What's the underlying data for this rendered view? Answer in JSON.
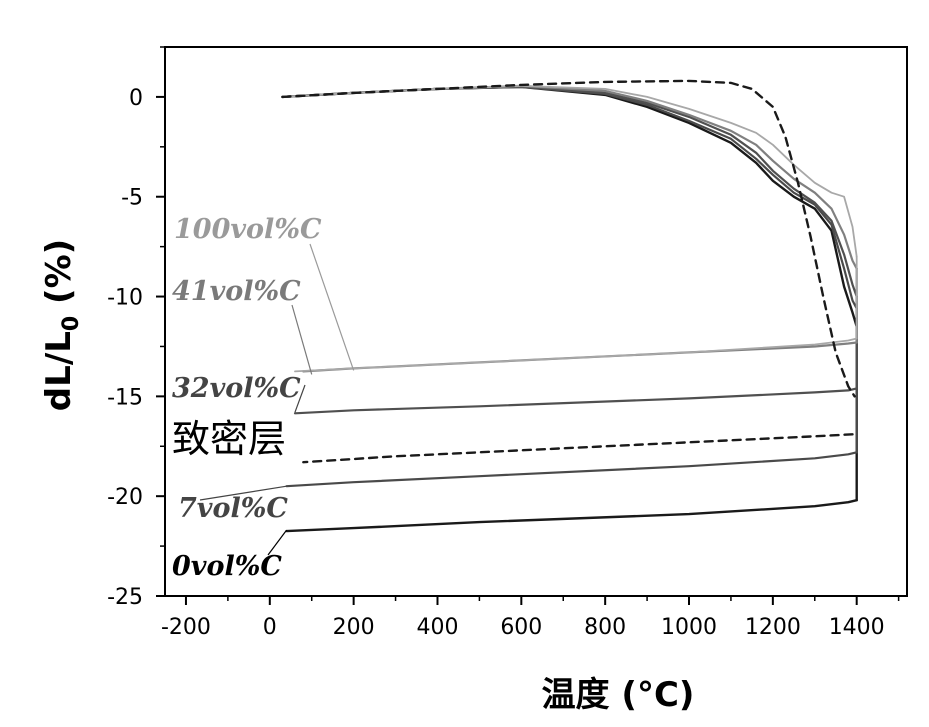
{
  "chart_data": {
    "type": "line",
    "title": "",
    "xlabel": "温度 (°C)",
    "ylabel": "dL/L",
    "ylabel_subscript": "0",
    "ylabel_suffix": " (%)",
    "xlim": [
      -250,
      1520
    ],
    "ylim": [
      -25,
      2.5
    ],
    "xticks": [
      -200,
      0,
      200,
      400,
      600,
      800,
      1000,
      1200,
      1400
    ],
    "yticks": [
      0,
      -5,
      -10,
      -15,
      -20,
      -25
    ],
    "grid": false,
    "annotations": [
      {
        "text": "100vol%C",
        "color": "#9a9a9a",
        "target": [
          200,
          -13.7
        ]
      },
      {
        "text": "41vol%C",
        "color": "#7a7a7a",
        "target": [
          100,
          -13.9
        ]
      },
      {
        "text": "32vol%C",
        "color": "#444444",
        "target": [
          60,
          -15.8
        ]
      },
      {
        "text": "致密层",
        "color": "#000000",
        "target": null
      },
      {
        "text": "7vol%C",
        "color": "#444444",
        "target": [
          40,
          -19.5
        ]
      },
      {
        "text": "0vol%C",
        "color": "#000000",
        "target": [
          40,
          -21.7
        ]
      }
    ],
    "series": [
      {
        "name": "0vol%C",
        "color": "#1a1a1a",
        "width": 2.4,
        "dash": "",
        "heating": [
          [
            30,
            0
          ],
          [
            200,
            0.2
          ],
          [
            400,
            0.4
          ],
          [
            600,
            0.5
          ],
          [
            800,
            0.1
          ],
          [
            900,
            -0.5
          ],
          [
            1000,
            -1.3
          ],
          [
            1100,
            -2.3
          ],
          [
            1160,
            -3.3
          ],
          [
            1200,
            -4.2
          ],
          [
            1250,
            -5.0
          ],
          [
            1300,
            -5.6
          ],
          [
            1340,
            -6.7
          ],
          [
            1370,
            -9.5
          ],
          [
            1390,
            -10.8
          ],
          [
            1400,
            -11.5
          ]
        ],
        "hold": [
          [
            1400,
            -11.5
          ],
          [
            1400,
            -20.2
          ]
        ],
        "cooling": [
          [
            1400,
            -20.2
          ],
          [
            1380,
            -20.3
          ],
          [
            1300,
            -20.5
          ],
          [
            1000,
            -20.9
          ],
          [
            500,
            -21.3
          ],
          [
            200,
            -21.6
          ],
          [
            40,
            -21.75
          ]
        ]
      },
      {
        "name": "7vol%C",
        "color": "#4a4a4a",
        "width": 2.2,
        "dash": "",
        "heating": [
          [
            30,
            0
          ],
          [
            200,
            0.2
          ],
          [
            400,
            0.4
          ],
          [
            600,
            0.5
          ],
          [
            800,
            0.15
          ],
          [
            900,
            -0.4
          ],
          [
            1000,
            -1.2
          ],
          [
            1100,
            -2.1
          ],
          [
            1160,
            -3.1
          ],
          [
            1200,
            -3.9
          ],
          [
            1250,
            -4.8
          ],
          [
            1300,
            -5.4
          ],
          [
            1340,
            -6.4
          ],
          [
            1370,
            -8.6
          ],
          [
            1390,
            -10.2
          ],
          [
            1400,
            -10.6
          ]
        ],
        "hold": [
          [
            1400,
            -10.6
          ],
          [
            1400,
            -17.8
          ]
        ],
        "cooling": [
          [
            1400,
            -17.8
          ],
          [
            1380,
            -17.9
          ],
          [
            1300,
            -18.1
          ],
          [
            1000,
            -18.5
          ],
          [
            500,
            -19.0
          ],
          [
            200,
            -19.3
          ],
          [
            40,
            -19.5
          ]
        ]
      },
      {
        "name": "32vol%C",
        "color": "#505050",
        "width": 2.2,
        "dash": "",
        "heating": [
          [
            30,
            0
          ],
          [
            200,
            0.2
          ],
          [
            400,
            0.4
          ],
          [
            600,
            0.5
          ],
          [
            800,
            0.2
          ],
          [
            900,
            -0.3
          ],
          [
            1000,
            -1.0
          ],
          [
            1100,
            -1.9
          ],
          [
            1160,
            -2.8
          ],
          [
            1200,
            -3.7
          ],
          [
            1250,
            -4.6
          ],
          [
            1300,
            -5.3
          ],
          [
            1340,
            -6.2
          ],
          [
            1370,
            -7.9
          ],
          [
            1390,
            -9.4
          ],
          [
            1400,
            -10.0
          ]
        ],
        "hold": [
          [
            1400,
            -10.0
          ],
          [
            1400,
            -14.6
          ]
        ],
        "cooling": [
          [
            1400,
            -14.6
          ],
          [
            1380,
            -14.7
          ],
          [
            1300,
            -14.8
          ],
          [
            1000,
            -15.1
          ],
          [
            500,
            -15.5
          ],
          [
            200,
            -15.7
          ],
          [
            60,
            -15.85
          ]
        ]
      },
      {
        "name": "41vol%C",
        "color": "#808080",
        "width": 2.2,
        "dash": "",
        "heating": [
          [
            30,
            0
          ],
          [
            200,
            0.2
          ],
          [
            400,
            0.4
          ],
          [
            600,
            0.55
          ],
          [
            800,
            0.3
          ],
          [
            900,
            -0.2
          ],
          [
            1000,
            -0.9
          ],
          [
            1100,
            -1.7
          ],
          [
            1160,
            -2.4
          ],
          [
            1200,
            -3.2
          ],
          [
            1250,
            -4.1
          ],
          [
            1300,
            -4.8
          ],
          [
            1340,
            -5.6
          ],
          [
            1370,
            -6.9
          ],
          [
            1390,
            -8.2
          ],
          [
            1400,
            -8.6
          ]
        ],
        "hold": [
          [
            1400,
            -8.6
          ],
          [
            1400,
            -12.3
          ]
        ],
        "cooling": [
          [
            1400,
            -12.3
          ],
          [
            1380,
            -12.35
          ],
          [
            1300,
            -12.5
          ],
          [
            1000,
            -12.8
          ],
          [
            500,
            -13.3
          ],
          [
            200,
            -13.6
          ],
          [
            80,
            -13.75
          ]
        ]
      },
      {
        "name": "100vol%C",
        "color": "#a8a8a8",
        "width": 1.8,
        "dash": "",
        "heating": [
          [
            30,
            0
          ],
          [
            200,
            0.2
          ],
          [
            400,
            0.4
          ],
          [
            600,
            0.55
          ],
          [
            800,
            0.4
          ],
          [
            900,
            0.0
          ],
          [
            1000,
            -0.6
          ],
          [
            1100,
            -1.3
          ],
          [
            1160,
            -1.8
          ],
          [
            1200,
            -2.4
          ],
          [
            1250,
            -3.4
          ],
          [
            1300,
            -4.3
          ],
          [
            1340,
            -4.8
          ],
          [
            1370,
            -5.0
          ],
          [
            1390,
            -6.5
          ],
          [
            1400,
            -8.0
          ]
        ],
        "hold": [
          [
            1400,
            -8.0
          ],
          [
            1400,
            -12.1
          ]
        ],
        "cooling": [
          [
            1400,
            -12.1
          ],
          [
            1380,
            -12.2
          ],
          [
            1300,
            -12.4
          ],
          [
            1000,
            -12.8
          ],
          [
            500,
            -13.3
          ],
          [
            200,
            -13.6
          ],
          [
            60,
            -13.75
          ]
        ]
      },
      {
        "name": "致密层",
        "color": "#1a1a1a",
        "width": 2.4,
        "dash": "8,6",
        "heating": [
          [
            30,
            0
          ],
          [
            200,
            0.2
          ],
          [
            400,
            0.4
          ],
          [
            600,
            0.6
          ],
          [
            800,
            0.75
          ],
          [
            1000,
            0.8
          ],
          [
            1100,
            0.7
          ],
          [
            1150,
            0.4
          ],
          [
            1200,
            -0.5
          ],
          [
            1230,
            -2.0
          ],
          [
            1260,
            -4.3
          ],
          [
            1290,
            -7.0
          ],
          [
            1320,
            -10.0
          ],
          [
            1350,
            -12.8
          ],
          [
            1380,
            -14.5
          ],
          [
            1395,
            -15.0
          ]
        ],
        "hold": [],
        "cooling": [
          [
            1390,
            -16.9
          ],
          [
            1300,
            -17.0
          ],
          [
            1000,
            -17.3
          ],
          [
            600,
            -17.7
          ],
          [
            300,
            -18.0
          ],
          [
            80,
            -18.3
          ]
        ]
      }
    ]
  }
}
